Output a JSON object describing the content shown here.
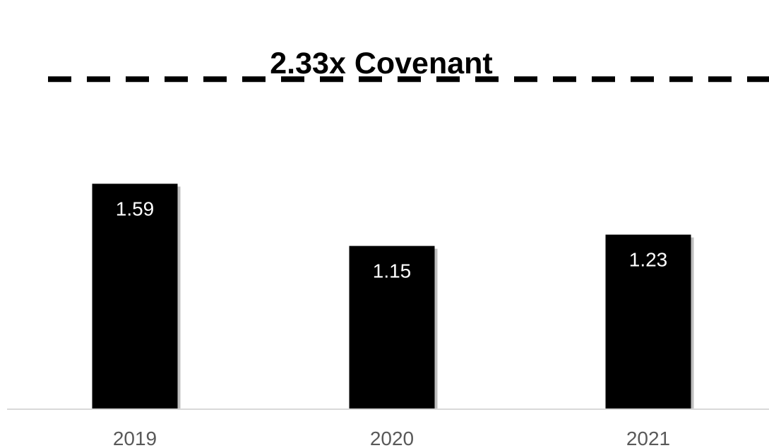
{
  "chart_data": {
    "type": "bar",
    "categories": [
      "2019",
      "2020",
      "2021"
    ],
    "values": [
      1.59,
      1.15,
      1.23
    ],
    "data_labels": [
      "1.59",
      "1.15",
      "1.23"
    ],
    "reference_line": {
      "value": 2.33,
      "label": "2.33x Covenant",
      "style": "dashed"
    },
    "ylim": [
      0,
      2.89
    ],
    "grid": false,
    "legend": false,
    "colors": {
      "bar": "#000000",
      "bar_shadow": "#bfbfbf",
      "reference_line": "#000000",
      "baseline": "#d9d9d9",
      "data_label": "#ffffff",
      "tick_label": "#595959"
    }
  }
}
